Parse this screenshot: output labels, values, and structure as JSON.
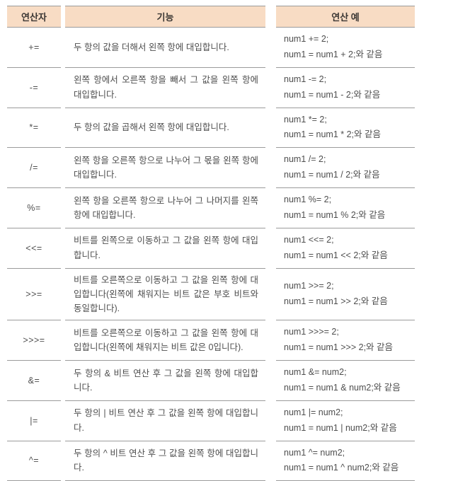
{
  "colors": {
    "header_bg": "#f8dcc4",
    "row_border": "#9b9b9b",
    "header_text": "#3a3633",
    "body_text": "#4e4e4e"
  },
  "table": {
    "columns": [
      {
        "label": "연산자"
      },
      {
        "label": "기능"
      },
      {
        "label": "연산 예"
      }
    ],
    "rows": [
      {
        "op": "+=",
        "desc": "두 항의 값을 더해서 왼쪽 항에 대입합니다.",
        "example_line1": "num1 += 2;",
        "example_line2": "num1 = num1 + 2;와 같음"
      },
      {
        "op": "-=",
        "desc": "왼쪽 항에서 오른쪽 항을 빼서 그 값을 왼쪽 항에 대입합니다.",
        "example_line1": "num1 -= 2;",
        "example_line2": "num1 = num1 - 2;와 같음"
      },
      {
        "op": "*=",
        "desc": "두 항의 값을 곱해서 왼쪽 항에 대입합니다.",
        "example_line1": "num1 *= 2;",
        "example_line2": "num1 = num1 * 2;와 같음"
      },
      {
        "op": "/=",
        "desc": "왼쪽 항을 오른쪽 항으로 나누어 그 몫을 왼쪽 항에 대입합니다.",
        "example_line1": "num1 /= 2;",
        "example_line2": "num1 = num1 / 2;와 같음"
      },
      {
        "op": "%=",
        "desc": "왼쪽 항을 오른쪽 항으로 나누어 그 나머지를 왼쪽 항에 대입합니다.",
        "example_line1": "num1 %= 2;",
        "example_line2": "num1 = num1 % 2;와 같음"
      },
      {
        "op": "<<=",
        "desc": "비트를 왼쪽으로 이동하고 그 값을 왼쪽 항에 대입합니다.",
        "example_line1": "num1 <<= 2;",
        "example_line2": "num1 = num1 << 2;와 같음"
      },
      {
        "op": ">>=",
        "desc": "비트를 오른쪽으로 이동하고 그 값을 왼쪽 항에 대입합니다(왼쪽에 채워지는 비트 값은 부호 비트와 동일합니다).",
        "example_line1": "num1 >>= 2;",
        "example_line2": "num1 = num1 >> 2;와 같음"
      },
      {
        "op": ">>>=",
        "desc": "비트를 오른쪽으로 이동하고 그 값을 왼쪽 항에 대입합니다(왼쪽에 채워지는 비트 값은 0입니다).",
        "example_line1": "num1 >>>= 2;",
        "example_line2": "num1 = num1 >>> 2;와 같음"
      },
      {
        "op": "&=",
        "desc": "두 항의 & 비트 연산 후 그 값을 왼쪽 항에 대입합니다.",
        "example_line1": "num1 &= num2;",
        "example_line2": "num1 = num1 & num2;와 같음"
      },
      {
        "op": "|=",
        "desc": "두 항의 | 비트 연산 후 그 값을 왼쪽 항에 대입합니다.",
        "example_line1": "num1 |= num2;",
        "example_line2": "num1 = num1 | num2;와 같음"
      },
      {
        "op": "^=",
        "desc": "두 항의 ^ 비트 연산 후 그 값을 왼쪽 항에 대입합니다.",
        "example_line1": "num1 ^= num2;",
        "example_line2": "num1 = num1 ^ num2;와 같음"
      }
    ]
  }
}
